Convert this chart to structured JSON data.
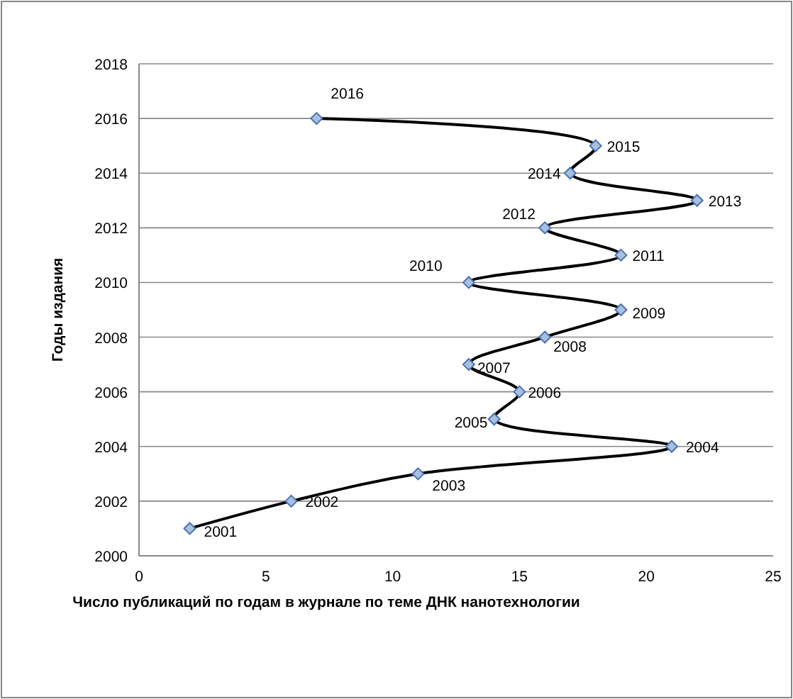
{
  "chart_data": {
    "type": "line",
    "xlabel": "Число публикаций по годам в журнале по теме ДНК нанотехнологии",
    "ylabel": "Годы издания",
    "x": [
      2,
      6,
      11,
      21,
      14,
      15,
      13,
      16,
      19,
      13,
      19,
      16,
      22,
      17,
      18,
      7
    ],
    "series": [
      {
        "color": "#000000",
        "values": [
          2001,
          2002,
          2003,
          2004,
          2005,
          2006,
          2007,
          2008,
          2009,
          2010,
          2011,
          2012,
          2013,
          2014,
          2015,
          2016
        ]
      }
    ],
    "xlim": [
      0,
      25
    ],
    "xticks": [
      0,
      5,
      10,
      15,
      20,
      25
    ],
    "ylim": [
      2000,
      2018
    ],
    "yticks": [
      2000,
      2002,
      2004,
      2006,
      2008,
      2010,
      2012,
      2014,
      2016,
      2018
    ],
    "grid": "y",
    "marker": "diamond",
    "data_labels": true
  }
}
